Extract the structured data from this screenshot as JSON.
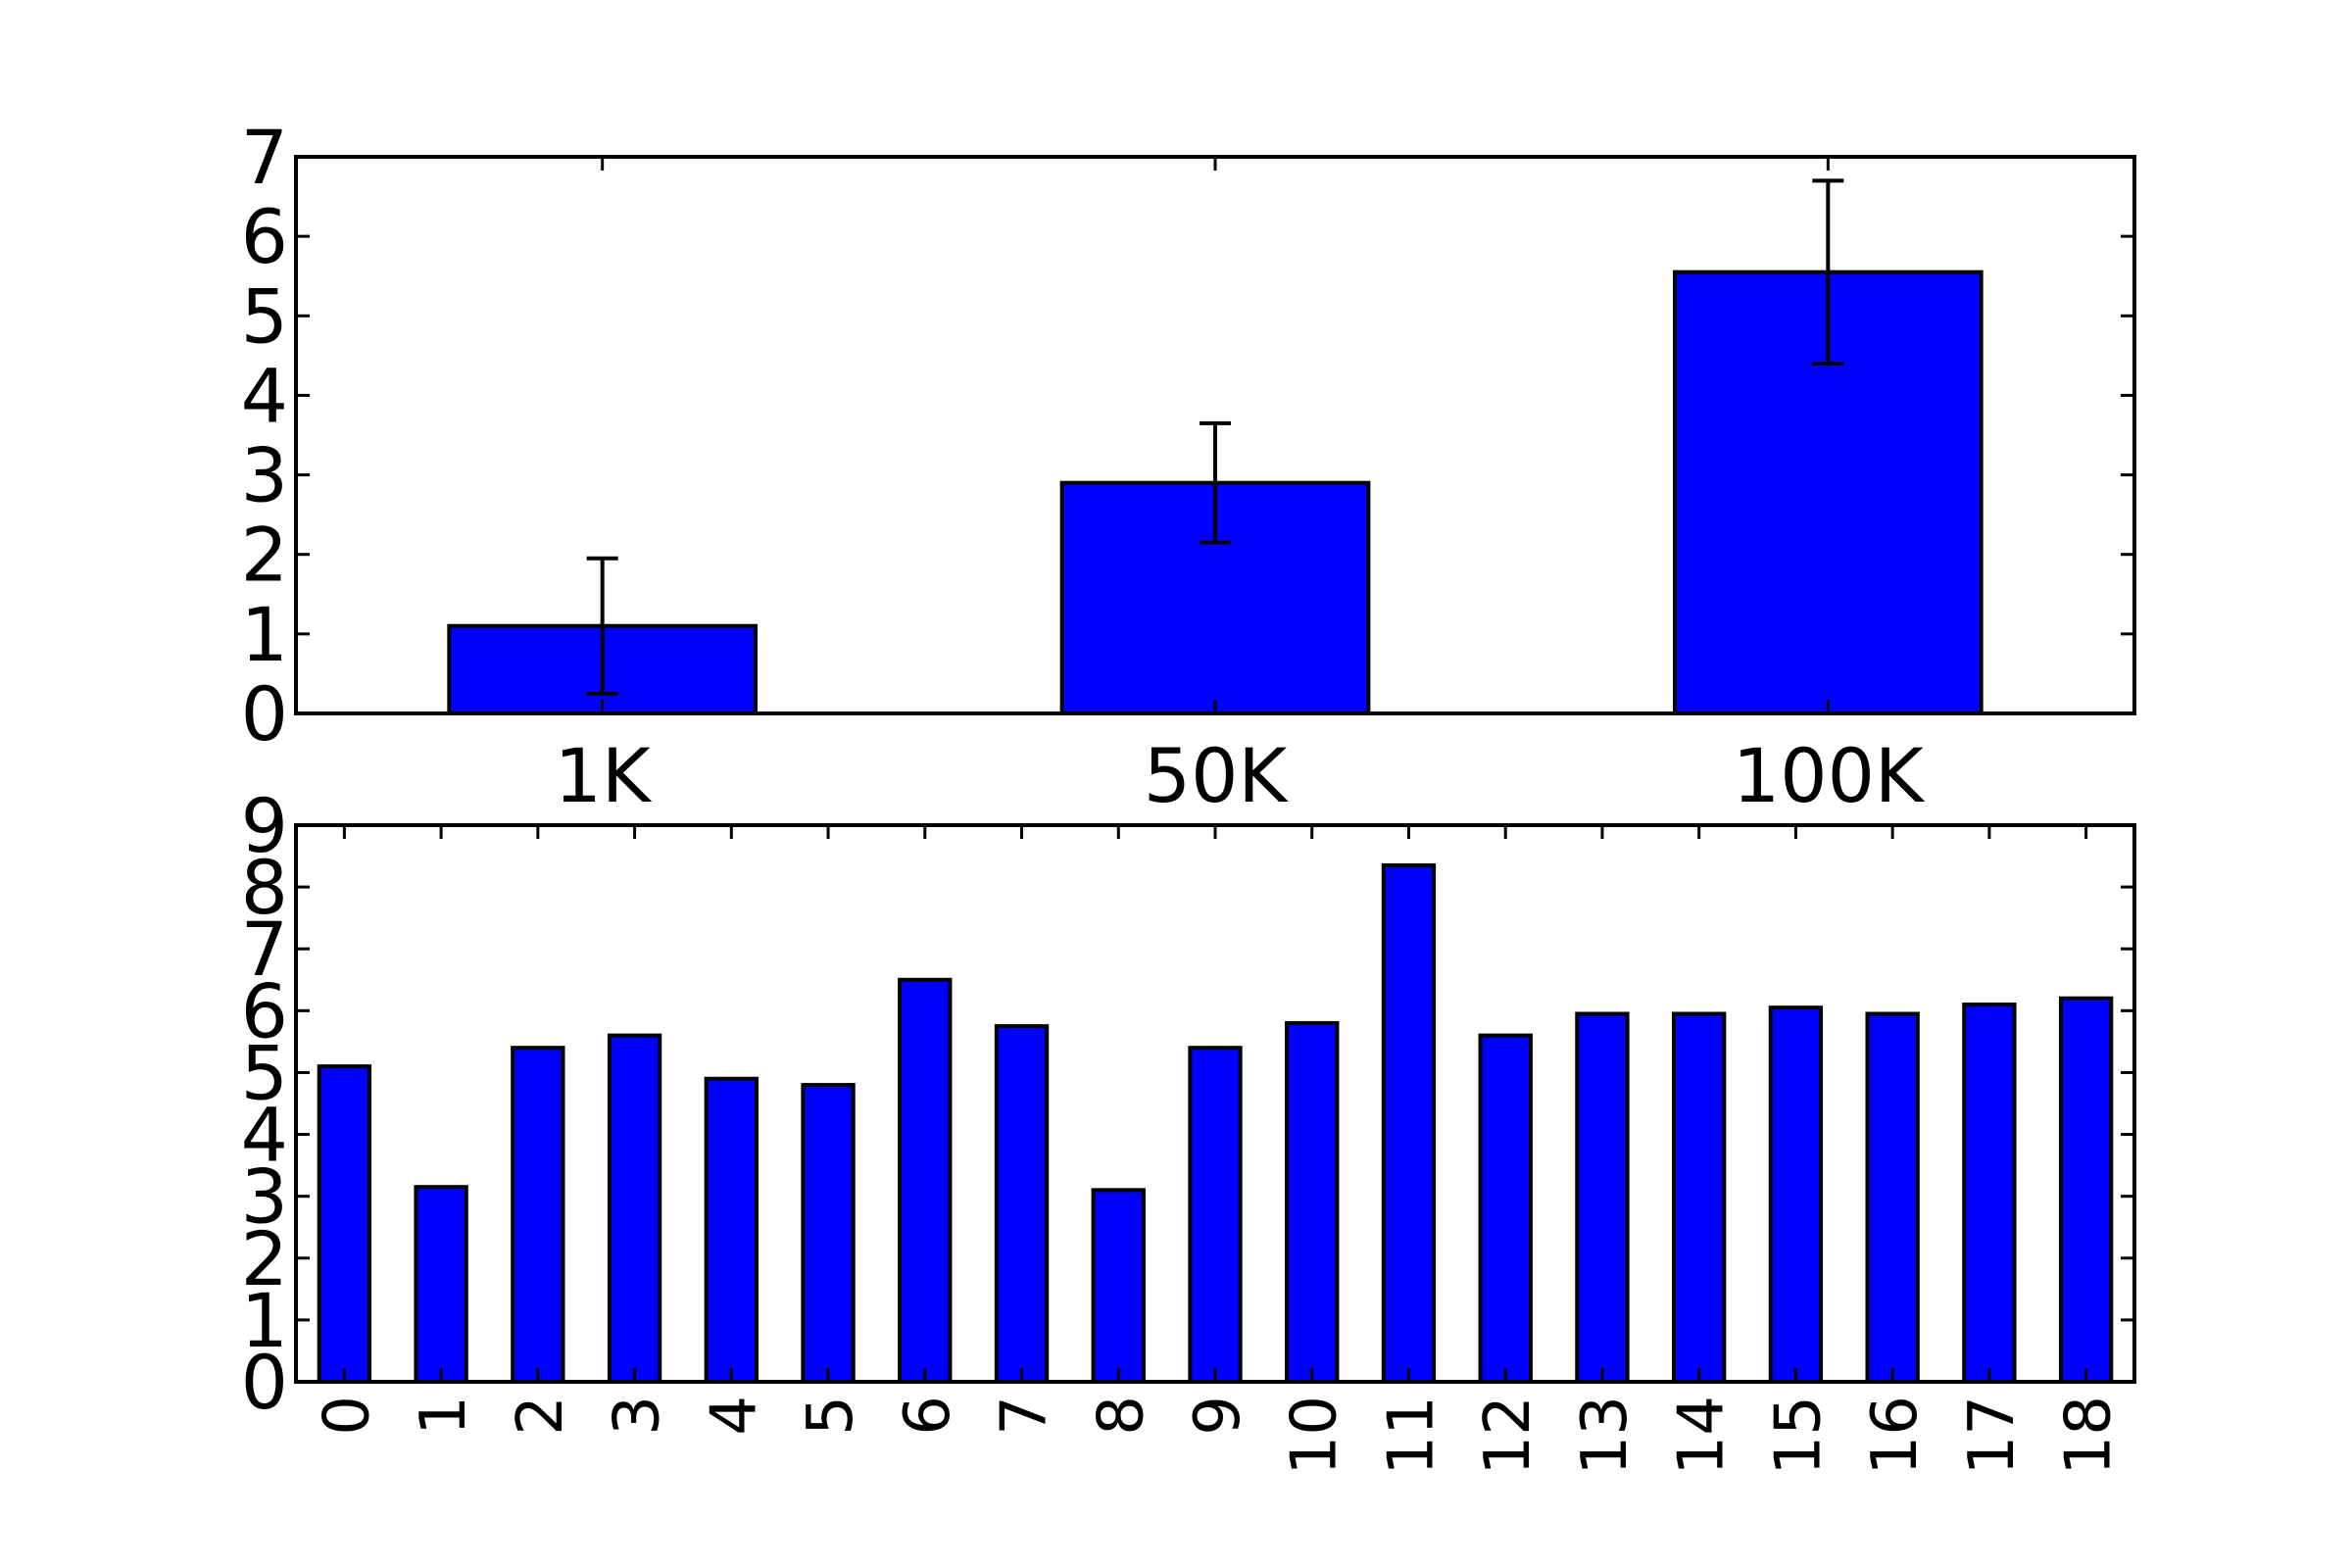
{
  "chart_data": [
    {
      "type": "bar",
      "categories": [
        "1K",
        "50K",
        "100K"
      ],
      "values": [
        1.1,
        2.9,
        5.55
      ],
      "errors": [
        0.85,
        0.75,
        1.15
      ],
      "title": "",
      "xlabel": "",
      "ylabel": "",
      "ylim": [
        0,
        7
      ],
      "yticks": [
        "0",
        "1",
        "2",
        "3",
        "4",
        "5",
        "6",
        "7"
      ],
      "grid": false,
      "bar_color": "#0000ff",
      "edge_color": "#000000"
    },
    {
      "type": "bar",
      "categories": [
        "0",
        "1",
        "2",
        "3",
        "4",
        "5",
        "6",
        "7",
        "8",
        "9",
        "10",
        "11",
        "12",
        "13",
        "14",
        "15",
        "16",
        "17",
        "18"
      ],
      "values": [
        5.1,
        3.15,
        5.4,
        5.6,
        4.9,
        4.8,
        6.5,
        5.75,
        3.1,
        5.4,
        5.8,
        8.35,
        5.6,
        5.95,
        5.95,
        6.05,
        5.95,
        6.1,
        6.2
      ],
      "title": "",
      "xlabel": "",
      "ylabel": "",
      "ylim": [
        0,
        9
      ],
      "yticks": [
        "0",
        "1",
        "2",
        "3",
        "4",
        "5",
        "6",
        "7",
        "8",
        "9"
      ],
      "xtick_rotation": "vertical",
      "grid": false,
      "bar_color": "#0000ff",
      "edge_color": "#000000"
    }
  ]
}
